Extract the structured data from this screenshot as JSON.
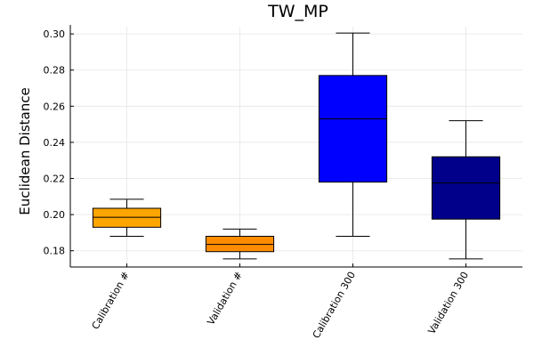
{
  "chart_data": {
    "type": "box",
    "title": "TW_MP",
    "xlabel": "",
    "ylabel": "Euclidean Distance",
    "ylim": [
      0.171,
      0.304
    ],
    "yticks": [
      0.18,
      0.2,
      0.22,
      0.24,
      0.26,
      0.28,
      0.3
    ],
    "ytick_labels": [
      "0.18",
      "0.20",
      "0.22",
      "0.24",
      "0.26",
      "0.28",
      "0.30"
    ],
    "grid": true,
    "legend": "none",
    "categories": [
      "Calibration #",
      "Validation #",
      "Calibration 300",
      "Validation 300"
    ],
    "boxes": [
      {
        "label": "Calibration #",
        "whisker_low": 0.188,
        "q1": 0.193,
        "median": 0.1985,
        "q3": 0.2035,
        "whisker_high": 0.2085,
        "color": "#FFA500"
      },
      {
        "label": "Validation #",
        "whisker_low": 0.1755,
        "q1": 0.1795,
        "median": 0.1835,
        "q3": 0.188,
        "whisker_high": 0.192,
        "color": "#FF8C00"
      },
      {
        "label": "Calibration 300",
        "whisker_low": 0.188,
        "q1": 0.218,
        "median": 0.253,
        "q3": 0.277,
        "whisker_high": 0.3005,
        "color": "#0000FF"
      },
      {
        "label": "Validation 300",
        "whisker_low": 0.1755,
        "q1": 0.1975,
        "median": 0.2175,
        "q3": 0.232,
        "whisker_high": 0.252,
        "color": "#00008B"
      }
    ]
  }
}
